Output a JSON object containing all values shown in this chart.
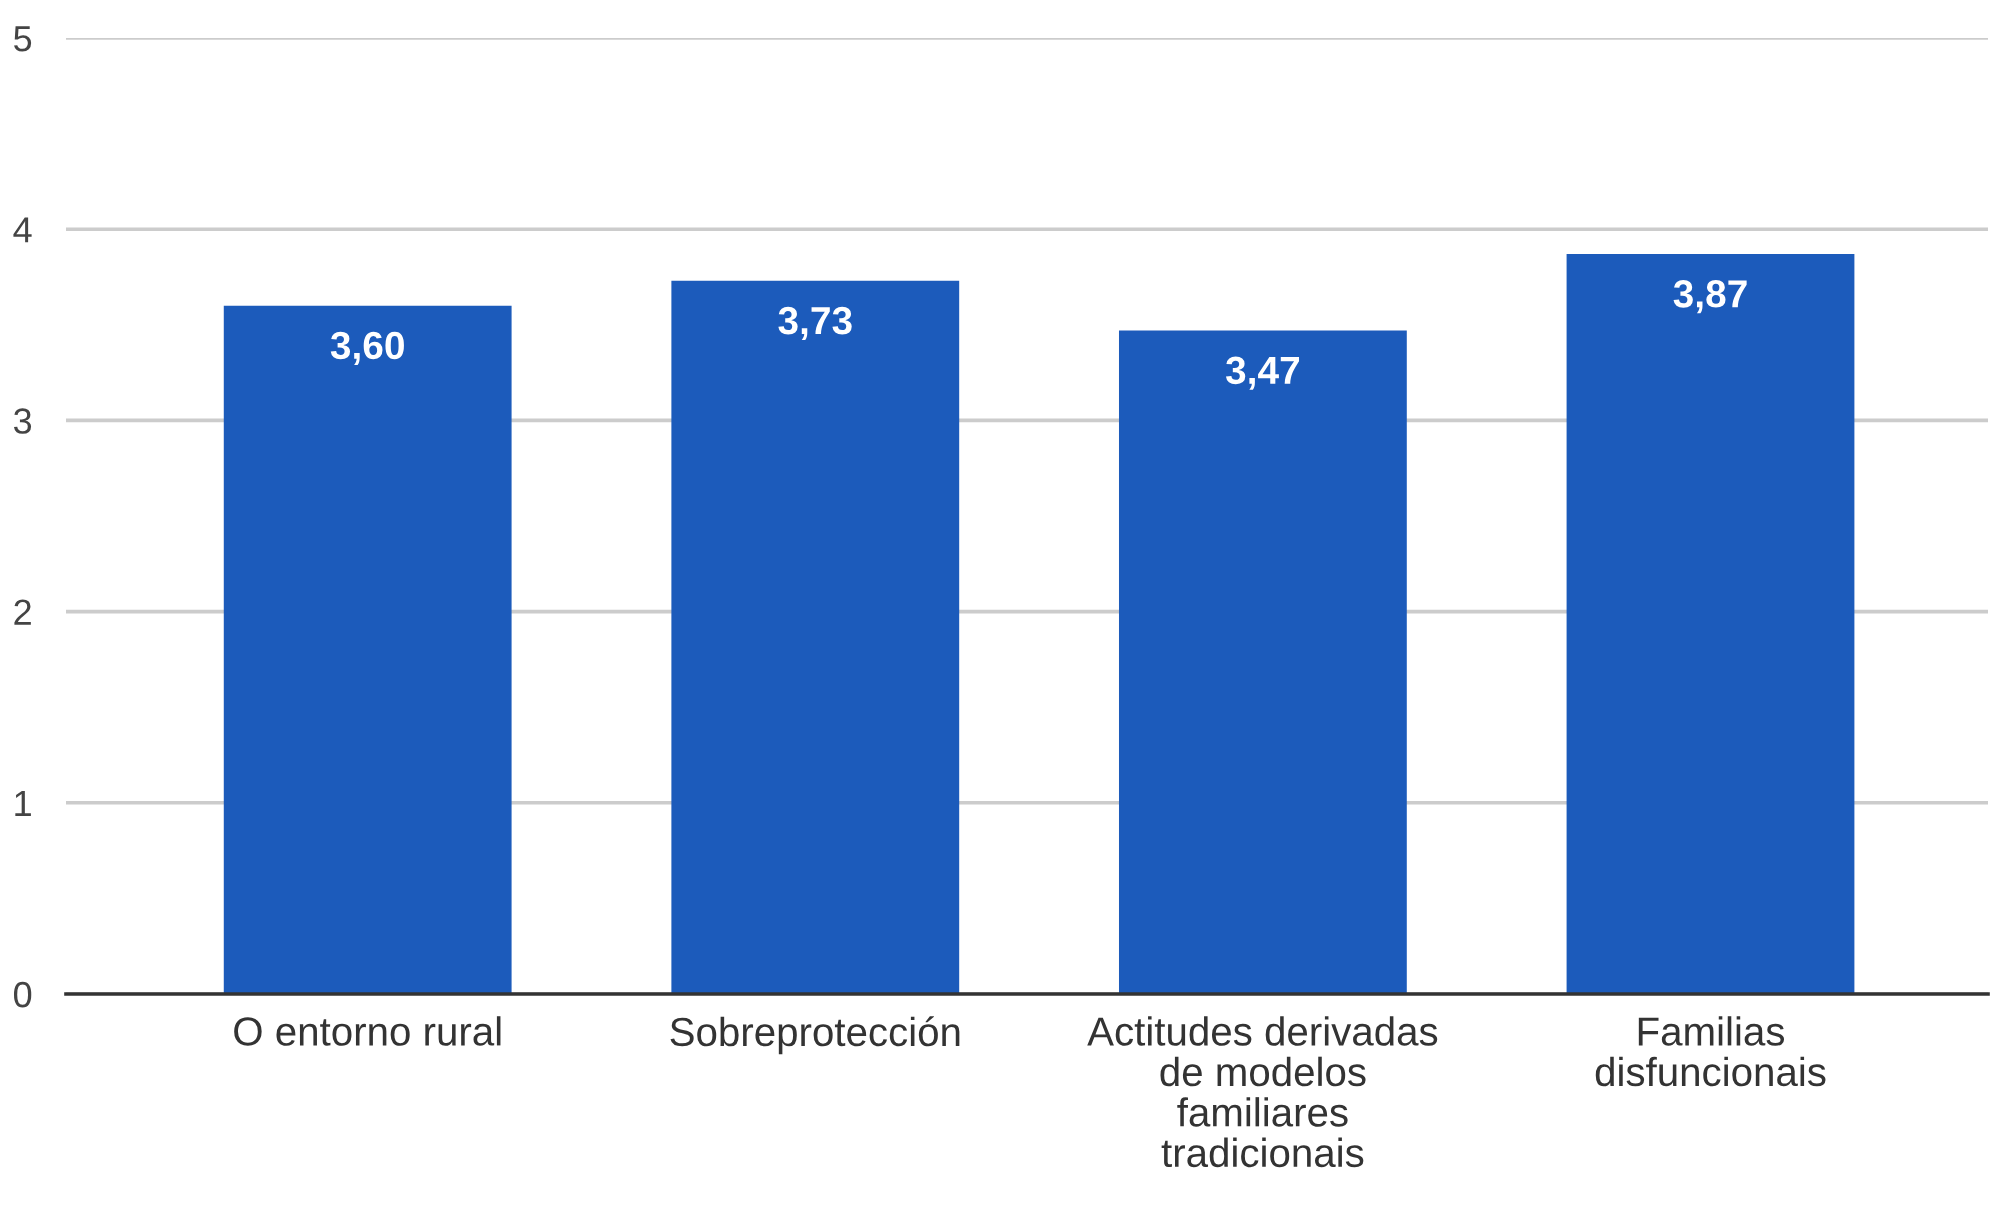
{
  "chart_data": {
    "type": "bar",
    "categories": [
      "O entorno rural",
      "Sobreprotección",
      "Actitudes derivadas\nde modelos\nfamiliares\ntradicionais",
      "Familias\ndisfuncionais"
    ],
    "values": [
      3.6,
      3.73,
      3.47,
      3.87
    ],
    "color": "#1c5bbb",
    "value_labels": [
      "3,60",
      "3,73",
      "3,47",
      "3,87"
    ],
    "ylim": [
      0,
      5
    ],
    "yticks": [
      0,
      1,
      2,
      3,
      4,
      5
    ],
    "grid": "y",
    "legend": false
  }
}
